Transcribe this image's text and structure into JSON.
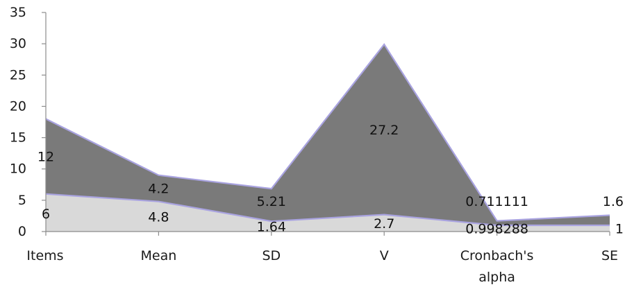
{
  "chart_data": {
    "type": "area",
    "stacked": true,
    "categories": [
      "Items",
      "Mean",
      "SD",
      "V",
      "Cronbach's alpha",
      "SE"
    ],
    "category_label_lines": [
      [
        "Items"
      ],
      [
        "Mean"
      ],
      [
        "SD"
      ],
      [
        "V"
      ],
      [
        "Cronbach's",
        "alpha"
      ],
      [
        "SE"
      ]
    ],
    "series": [
      {
        "values": [
          6,
          4.8,
          1.64,
          2.7,
          0.998288,
          1
        ],
        "color": "#d9d9d9"
      },
      {
        "values": [
          12,
          4.2,
          5.21,
          27.2,
          0.711111,
          1.6
        ],
        "color": "#7a7a7a"
      }
    ],
    "ylim": [
      0,
      35
    ],
    "yticks": [
      0,
      5,
      10,
      15,
      20,
      25,
      30,
      35
    ],
    "grid": false,
    "legend": "none",
    "outline_color": "#a9a3e0"
  }
}
